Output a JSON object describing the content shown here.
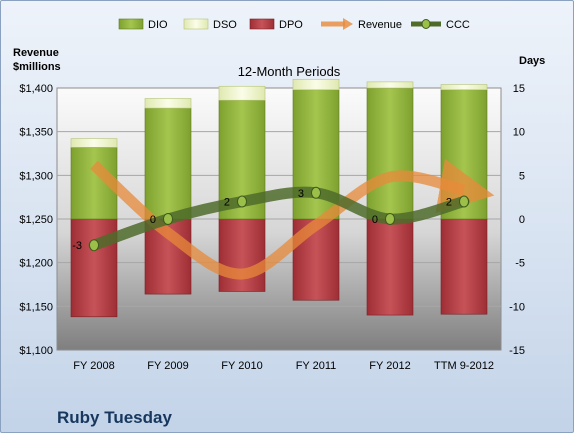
{
  "company": "Ruby Tuesday",
  "chart_data": {
    "type": "bar",
    "title": "12-Month Periods",
    "left_axis_label": [
      "Revenue",
      "$millions"
    ],
    "right_axis_label": "Days",
    "categories": [
      "FY 2008",
      "FY 2009",
      "FY 2010",
      "FY 2011",
      "FY 2012",
      "TTM 9-2012"
    ],
    "left_axis": {
      "min": 1100,
      "max": 1400,
      "step": 50,
      "tick_labels": [
        "$1,100",
        "$1,150",
        "$1,200",
        "$1,250",
        "$1,300",
        "$1,350",
        "$1,400"
      ]
    },
    "right_axis": {
      "min": -15,
      "max": 15,
      "step": 5,
      "tick_labels": [
        "-15",
        "-10",
        "-5",
        "0",
        "5",
        "10",
        "15"
      ]
    },
    "grid": true,
    "legend_position": "top",
    "stacked_series": [
      {
        "name": "DIO",
        "color": "#8fb43a",
        "values": [
          8.2,
          12.7,
          13.6,
          14.8,
          15.0,
          14.8
        ]
      },
      {
        "name": "DSO",
        "color": "#eef5c8",
        "values": [
          1.0,
          1.1,
          1.6,
          1.2,
          0.7,
          0.6
        ]
      },
      {
        "name": "DPO",
        "color": "#b2383f",
        "values": [
          -11.2,
          -8.6,
          -8.3,
          -9.3,
          -11.0,
          -10.9
        ]
      }
    ],
    "revenue_series": {
      "name": "Revenue",
      "color": "#e8893a",
      "values": [
        1312,
        1234,
        1187,
        1243,
        1298,
        1283
      ]
    },
    "ccc_series": {
      "name": "CCC",
      "color": "#4f6b2a",
      "values": [
        -3,
        0,
        2,
        3,
        0,
        2
      ],
      "point_labels": [
        "-3",
        "0",
        "2",
        "3",
        "0",
        "2"
      ]
    }
  }
}
